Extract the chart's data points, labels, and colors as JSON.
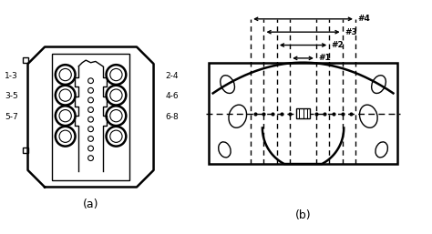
{
  "fig_width": 4.74,
  "fig_height": 2.57,
  "dpi": 100,
  "bg_color": "#ffffff",
  "label_a": "(a)",
  "label_b": "(b)",
  "left_labels": [
    "1-3",
    "3-5",
    "5-7"
  ],
  "right_labels": [
    "2-4",
    "4-6",
    "6-8"
  ],
  "dimension_labels": [
    "#1",
    "#2",
    "#3",
    "#4"
  ],
  "line_color": "#000000",
  "lw": 1.0,
  "lw_thick": 1.8
}
